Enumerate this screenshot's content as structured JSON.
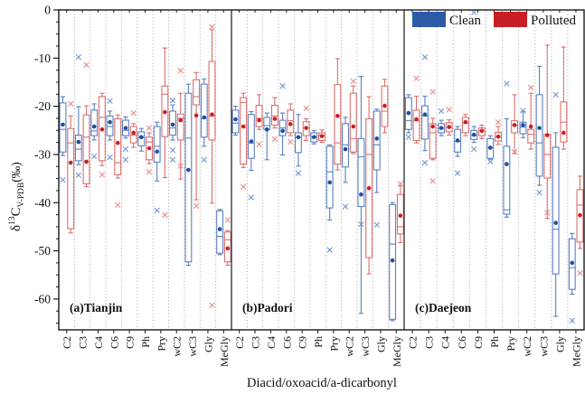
{
  "chart_data": {
    "type": "box",
    "xlabel": "Diacid/oxoacid/a-dicarbonyl",
    "ylabel_parts": {
      "delta": "δ",
      "isotope": "13",
      "element": "C",
      "subscript": "V-PDB",
      "units": "(‰)"
    },
    "ylim": [
      -66.4,
      0
    ],
    "yticks": [
      0,
      -10,
      -20,
      -30,
      -40,
      -50,
      -60
    ],
    "y_minor_step": 2.5,
    "grid": "dotted-vertical-between-categories",
    "categories": [
      "C2",
      "C3",
      "C4",
      "C6",
      "C9",
      "Ph",
      "Pry",
      "wC2",
      "wC3",
      "Gly",
      "MeGly"
    ],
    "legend": [
      {
        "label": "Clean",
        "color": "#2b5aa7"
      },
      {
        "label": "Polluted",
        "color": "#c81f25"
      }
    ],
    "colors": {
      "clean_box": "#5b80c2",
      "clean_mean": "#1f4da0",
      "clean_outlier": "#6f97d4",
      "polluted_box": "#dd6f6b",
      "polluted_mean": "#c81f25",
      "polluted_outlier": "#e98a8a",
      "grid": "#9a9a9a",
      "axis": "#1a1a1a"
    },
    "box_format": "[whisker_low, q1, median, q3, whisker_high, mean, [outliers]] in permil",
    "panels": [
      {
        "label": "(a)Tianjin",
        "site": "Tianjin",
        "clean": [
          [
            -30.2,
            -29.5,
            -24.8,
            -19.3,
            -18.0,
            -23.8,
            [
              -35.3
            ]
          ],
          [
            -32.1,
            -31.3,
            -28.9,
            -26.0,
            -20.1,
            -27.4,
            [
              -9.8,
              -34.3
            ]
          ],
          [
            -27.0,
            -26.1,
            -25.1,
            -20.8,
            -19.5,
            -24.2,
            [
              -30.4
            ]
          ],
          [
            -27.0,
            -26.1,
            -24.2,
            -22.0,
            -21.0,
            -23.3,
            [
              -18.9,
              -30.6
            ]
          ],
          [
            -26.6,
            -26.1,
            -25.0,
            -22.9,
            -22.2,
            -24.5,
            [
              -28.9,
              -31.1
            ]
          ],
          [
            -29.3,
            -28.2,
            -26.5,
            -25.3,
            -24.6,
            -26.4,
            []
          ],
          [
            -35.5,
            -31.6,
            -28.3,
            -24.2,
            -23.3,
            -29.4,
            [
              -41.6
            ]
          ],
          [
            -27.0,
            -26.0,
            -24.5,
            -21.0,
            -19.7,
            -23.8,
            [
              -18.8,
              -29.1,
              -31.1
            ]
          ],
          [
            -53.0,
            -52.3,
            -26.6,
            -17.3,
            -15.4,
            -33.2,
            []
          ],
          [
            -28.3,
            -26.4,
            -22.5,
            -15.4,
            -14.3,
            -22.3,
            [
              -31.1
            ]
          ],
          [
            -50.8,
            -50.5,
            -47.0,
            -41.7,
            -41.4,
            -45.5,
            []
          ]
        ],
        "polluted": [
          [
            -46.3,
            -45.4,
            -27.6,
            -24.6,
            -22.0,
            -31.7,
            [
              -19.5
            ]
          ],
          [
            -36.7,
            -36.1,
            -26.4,
            -21.8,
            -19.9,
            -31.5,
            [
              -11.4
            ]
          ],
          [
            -32.3,
            -31.3,
            -22.3,
            -18.0,
            -17.3,
            -24.8,
            [
              -34.2
            ]
          ],
          [
            -34.9,
            -34.2,
            -31.7,
            -22.6,
            -21.8,
            -27.6,
            [
              -40.5
            ]
          ],
          [
            -28.5,
            -27.6,
            -26.0,
            -24.2,
            -23.6,
            -25.5,
            [
              -21.4
            ]
          ],
          [
            -31.9,
            -31.1,
            -27.4,
            -26.4,
            -25.5,
            -28.7,
            [
              -24.5,
              -33.6
            ]
          ],
          [
            -34.8,
            -26.3,
            -17.5,
            -15.8,
            -7.9,
            -21.2,
            [
              -42.6
            ]
          ],
          [
            -35.1,
            -27.0,
            -22.5,
            -21.6,
            -17.3,
            -22.9,
            [
              -12.6,
              -32.4
            ]
          ],
          [
            -39.4,
            -19.7,
            -18.0,
            -14.5,
            -13.0,
            -21.9,
            [
              -40.7
            ]
          ],
          [
            -40.1,
            -27.0,
            -22.0,
            -10.7,
            -4.1,
            -21.7,
            [
              -3.5,
              -61.3
            ]
          ],
          [
            -53.0,
            -52.3,
            -47.7,
            -46.1,
            -45.8,
            -49.5,
            [
              -43.6
            ]
          ]
        ]
      },
      {
        "label": "(b)Padori",
        "site": "Padori",
        "clean": [
          [
            -26.0,
            -25.5,
            -23.5,
            -20.8,
            -20.0,
            -22.7,
            []
          ],
          [
            -33.3,
            -30.8,
            -27.6,
            -21.7,
            -21.1,
            -27.3,
            [
              -38.9
            ]
          ],
          [
            -31.1,
            -24.8,
            -24.0,
            -22.3,
            -21.4,
            -24.8,
            []
          ],
          [
            -30.1,
            -26.1,
            -24.5,
            -22.9,
            -21.4,
            -25.1,
            [
              -15.8
            ]
          ],
          [
            -32.4,
            -29.6,
            -26.5,
            -25.5,
            -21.7,
            -26.4,
            [
              -33.9
            ]
          ],
          [
            -27.8,
            -27.4,
            -26.3,
            -25.5,
            -25.0,
            -26.4,
            []
          ],
          [
            -43.6,
            -41.1,
            -33.6,
            -28.3,
            -28.0,
            -35.8,
            [
              -49.8
            ]
          ],
          [
            -35.8,
            -32.6,
            -28.0,
            -23.6,
            -22.3,
            -28.9,
            [
              -40.8
            ]
          ],
          [
            -63.0,
            -40.8,
            -30.5,
            -26.7,
            -13.8,
            -38.3,
            [
              -44.5
            ]
          ],
          [
            -37.9,
            -33.2,
            -28.0,
            -21.0,
            -20.6,
            -26.7,
            [
              -44.6
            ]
          ],
          [
            -64.5,
            -64.2,
            -48.6,
            -40.4,
            -40.0,
            -52.0,
            []
          ]
        ],
        "polluted": [
          [
            -32.7,
            -32.0,
            -19.2,
            -18.2,
            -17.3,
            -24.2,
            [
              -36.7
            ]
          ],
          [
            -24.8,
            -24.2,
            -22.5,
            -19.8,
            -17.6,
            -22.9,
            [
              -27.9
            ]
          ],
          [
            -24.5,
            -23.9,
            -22.0,
            -19.8,
            -18.2,
            -22.6,
            [
              -26.8
            ]
          ],
          [
            -26.1,
            -25.5,
            -23.0,
            -20.8,
            -19.5,
            -23.7,
            [
              -27.4
            ]
          ],
          [
            -27.1,
            -26.1,
            -24.5,
            -23.2,
            -22.6,
            -24.5,
            [
              -20.4
            ]
          ],
          [
            -27.5,
            -27.1,
            -26.0,
            -25.5,
            -24.9,
            -26.2,
            []
          ],
          [
            -33.2,
            -32.0,
            -27.6,
            -15.5,
            -10.1,
            -22.0,
            []
          ],
          [
            -29.8,
            -29.5,
            -26.7,
            -17.3,
            -15.8,
            -24.2,
            [
              -14.8
            ]
          ],
          [
            -54.8,
            -51.4,
            -30.0,
            -22.6,
            -18.0,
            -37.0,
            []
          ],
          [
            -25.5,
            -24.2,
            -21.0,
            -15.8,
            -14.4,
            -19.9,
            []
          ],
          [
            -48.3,
            -46.5,
            -45.0,
            -38.3,
            -36.5,
            -42.7,
            [
              -36.1
            ]
          ]
        ]
      },
      {
        "label": "(c)Daejeon",
        "site": "Daejeon",
        "clean": [
          [
            -25.5,
            -24.8,
            -23.0,
            -18.2,
            -17.6,
            -21.4,
            [
              -26.4
            ]
          ],
          [
            -29.2,
            -26.8,
            -22.0,
            -19.9,
            -17.9,
            -21.7,
            [
              -9.8,
              -31.7
            ]
          ],
          [
            -26.1,
            -25.5,
            -24.6,
            -23.6,
            -22.9,
            -24.5,
            [
              -21.0
            ]
          ],
          [
            -30.4,
            -29.5,
            -27.3,
            -24.8,
            -24.2,
            -27.1,
            [
              -33.9
            ]
          ],
          [
            -27.5,
            -26.9,
            -26.0,
            -25.0,
            -24.2,
            -25.9,
            [
              -0.5,
              -28.9
            ]
          ],
          [
            -31.0,
            -30.8,
            -28.5,
            -26.7,
            -26.1,
            -28.6,
            [
              -31.5
            ]
          ],
          [
            -43.0,
            -42.4,
            -41.5,
            -28.3,
            -22.6,
            -32.0,
            [
              -15.3
            ]
          ],
          [
            -26.5,
            -25.7,
            -24.3,
            -23.3,
            -21.1,
            -23.9,
            [
              -20.9
            ]
          ],
          [
            -36.4,
            -34.5,
            -27.6,
            -17.6,
            -11.7,
            -24.5,
            [
              -37.9
            ]
          ],
          [
            -63.6,
            -54.8,
            -45.5,
            -28.5,
            -25.5,
            -44.2,
            [
              -17.6
            ]
          ],
          [
            -59.0,
            -58.0,
            -53.5,
            -47.5,
            -46.4,
            -52.5,
            [
              -64.5
            ]
          ]
        ],
        "polluted": [
          [
            -27.6,
            -27.1,
            -23.0,
            -20.8,
            -17.9,
            -22.7,
            [
              -14.2
            ]
          ],
          [
            -31.1,
            -30.8,
            -25.5,
            -23.6,
            -22.5,
            -24.2,
            [
              -17.0,
              -35.5
            ]
          ],
          [
            -26.0,
            -25.3,
            -24.4,
            -23.4,
            -22.8,
            -24.3,
            [
              -20.7
            ]
          ],
          [
            -26.1,
            -25.5,
            -23.5,
            -22.3,
            -21.7,
            -23.3,
            []
          ],
          [
            -26.7,
            -26.1,
            -25.1,
            -24.5,
            -23.9,
            -25.1,
            []
          ],
          [
            -27.9,
            -27.2,
            -26.3,
            -25.4,
            -24.2,
            -26.3,
            [
              -23.3
            ]
          ],
          [
            -29.8,
            -25.5,
            -24.0,
            -23.0,
            -17.6,
            -23.9,
            [
              -29.5
            ]
          ],
          [
            -28.9,
            -27.6,
            -25.8,
            -24.8,
            -17.3,
            -24.2,
            [
              -16.1
            ]
          ],
          [
            -43.3,
            -34.9,
            -30.0,
            -25.8,
            -7.3,
            -26.0,
            [
              -42.1
            ]
          ],
          [
            -28.9,
            -27.4,
            -23.3,
            -19.1,
            -7.7,
            -25.5,
            []
          ],
          [
            -49.5,
            -48.2,
            -40.5,
            -37.3,
            -34.5,
            -42.6,
            [
              -54.6
            ]
          ]
        ]
      }
    ]
  }
}
